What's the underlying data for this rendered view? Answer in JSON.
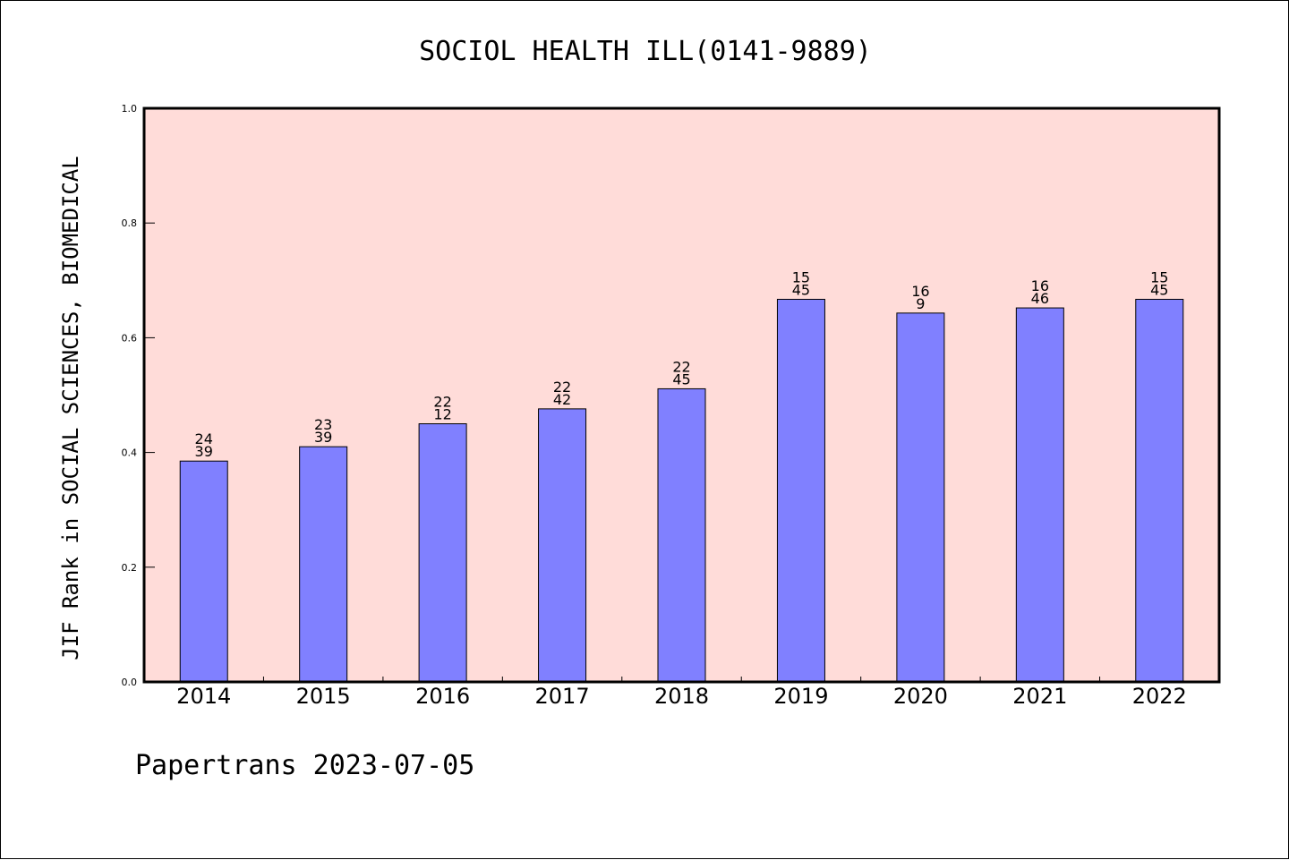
{
  "chart_data": {
    "type": "bar",
    "title": "SOCIOL HEALTH ILL(0141-9889)",
    "xlabel": "",
    "ylabel": "JIF Rank in SOCIAL SCIENCES, BIOMEDICAL",
    "ylim": [
      0.0,
      1.0
    ],
    "yticks": [
      "0.0",
      "0.2",
      "0.4",
      "0.6",
      "0.8",
      "1.0"
    ],
    "categories": [
      "2014",
      "2015",
      "2016",
      "2017",
      "2018",
      "2019",
      "2020",
      "2021",
      "2022"
    ],
    "values": [
      0.385,
      0.41,
      0.45,
      0.476,
      0.511,
      0.667,
      0.643,
      0.652,
      0.667
    ],
    "labels_top": [
      "24",
      "23",
      "22",
      "22",
      "22",
      "15",
      "16",
      "16",
      "15"
    ],
    "labels_bottom": [
      "39",
      "39",
      "12",
      "42",
      "45",
      "45",
      "9",
      "46",
      "45"
    ],
    "grid": false,
    "colors": {
      "plot_background": "#ffdcd9",
      "bar_fill": "#8080ff",
      "bar_stroke": "#000000"
    }
  },
  "footer": {
    "text": "Papertrans 2023-07-05"
  }
}
